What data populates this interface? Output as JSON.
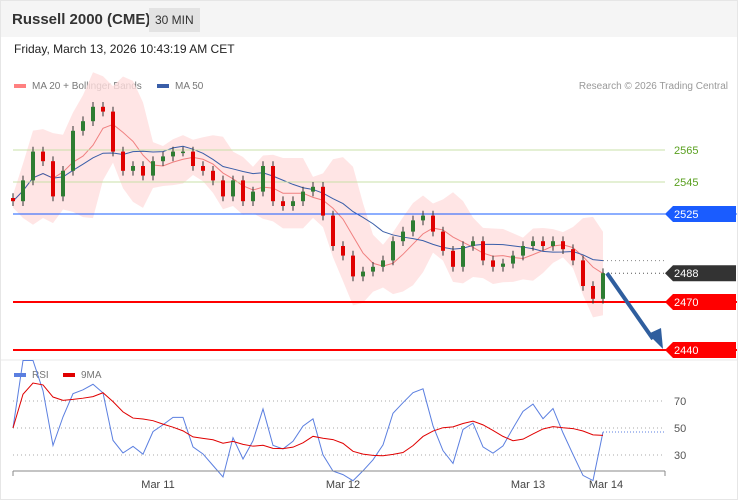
{
  "header": {
    "title": "Russell 2000 (CME)",
    "timeframe": "30 MIN",
    "datetime": "Friday, March 13, 2026 10:43:19 AM CET"
  },
  "legend": {
    "ma20": "MA 20 + Bollinger Bands",
    "ma50": "MA 50",
    "rsi": "RSI",
    "ma9": "9MA",
    "credit": "Research © 2026 Trading Central"
  },
  "colors": {
    "up": "#2e7d32",
    "down": "#e00000",
    "band": "#ffdede",
    "ma20": "#f08080",
    "ma50": "#3a5ea8",
    "resistance_green": "#c8e0a8",
    "pivot_blue": "#1a5cff",
    "support_red": "#ff0000",
    "arrow": "#2f5e9e",
    "rsi": "#5b7fe0",
    "rsi_ma": "#e00000"
  },
  "chart_data": {
    "type": "candlestick",
    "price_range": [
      2435,
      2600
    ],
    "closes": [
      2533,
      2546,
      2564,
      2558,
      2536,
      2552,
      2577,
      2583,
      2592,
      2589,
      2564,
      2552,
      2555,
      2549,
      2558,
      2561,
      2564,
      2564,
      2555,
      2552,
      2546,
      2536,
      2546,
      2533,
      2539,
      2555,
      2533,
      2530,
      2533,
      2539,
      2542,
      2524,
      2505,
      2499,
      2486,
      2489,
      2492,
      2496,
      2508,
      2514,
      2521,
      2524,
      2514,
      2502,
      2492,
      2505,
      2508,
      2496,
      2492,
      2494,
      2499,
      2505,
      2508,
      2505,
      2508,
      2503,
      2496,
      2480,
      2472,
      2488
    ],
    "levels": [
      {
        "label": "2565",
        "value": 2565,
        "kind": "resistance"
      },
      {
        "label": "2545",
        "value": 2545,
        "kind": "resistance"
      },
      {
        "label": "2525",
        "value": 2525,
        "kind": "pivot"
      },
      {
        "label": "2488",
        "value": 2488,
        "kind": "last"
      },
      {
        "label": "2470",
        "value": 2470,
        "kind": "support"
      },
      {
        "label": "2440",
        "value": 2440,
        "kind": "support"
      }
    ],
    "rsi_range": [
      20,
      80
    ],
    "rsi_ticks": [
      "70",
      "50",
      "30"
    ],
    "x_labels": [
      {
        "label": "Mar 11",
        "index": 14.5
      },
      {
        "label": "Mar 12",
        "index": 33
      },
      {
        "label": "Mar 13",
        "index": 51.5
      },
      {
        "label": "Mar 14",
        "index": 59.3
      }
    ]
  }
}
